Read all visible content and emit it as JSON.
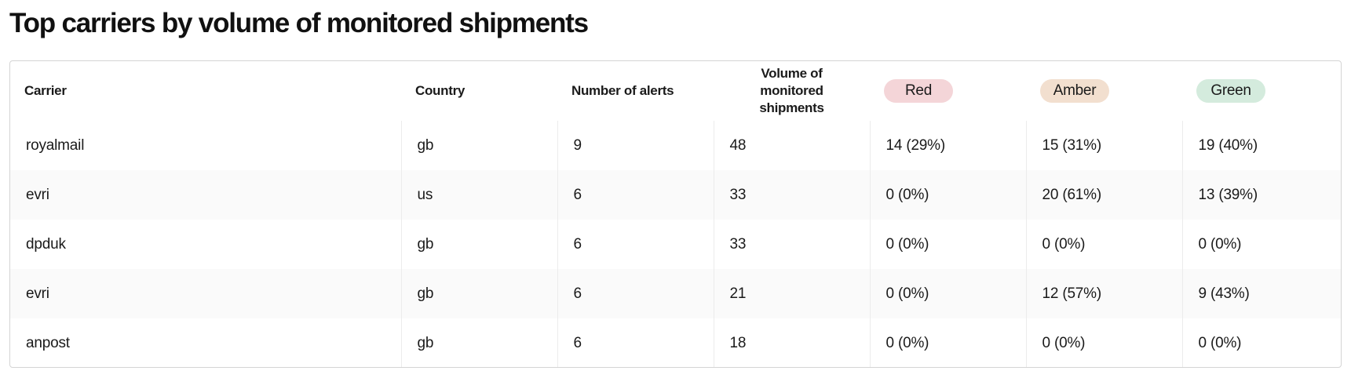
{
  "page": {
    "title": "Top carriers by volume of monitored shipments"
  },
  "table": {
    "headers": {
      "carrier": "Carrier",
      "country": "Country",
      "alerts": "Number of alerts",
      "volume": "Volume of monitored shipments",
      "red": "Red",
      "amber": "Amber",
      "green": "Green"
    },
    "status_colors": {
      "red": "#f4d5d8",
      "amber": "#f2dfcf",
      "green": "#d4ebdd"
    },
    "rows": [
      {
        "carrier": "royalmail",
        "country": "gb",
        "alerts": "9",
        "volume": "48",
        "red": "14 (29%)",
        "amber": "15 (31%)",
        "green": "19 (40%)"
      },
      {
        "carrier": "evri",
        "country": "us",
        "alerts": "6",
        "volume": "33",
        "red": "0 (0%)",
        "amber": "20 (61%)",
        "green": "13 (39%)"
      },
      {
        "carrier": "dpduk",
        "country": "gb",
        "alerts": "6",
        "volume": "33",
        "red": "0 (0%)",
        "amber": "0 (0%)",
        "green": "0 (0%)"
      },
      {
        "carrier": "evri",
        "country": "gb",
        "alerts": "6",
        "volume": "21",
        "red": "0 (0%)",
        "amber": "12 (57%)",
        "green": "9 (43%)"
      },
      {
        "carrier": "anpost",
        "country": "gb",
        "alerts": "6",
        "volume": "18",
        "red": "0 (0%)",
        "amber": "0 (0%)",
        "green": "0 (0%)"
      }
    ]
  }
}
